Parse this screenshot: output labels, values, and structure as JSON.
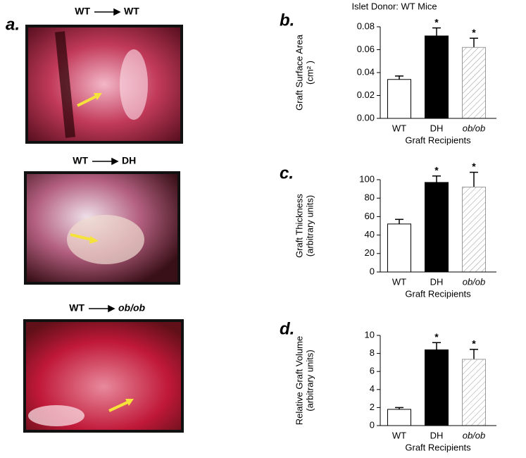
{
  "panel_a": {
    "label": "a.",
    "captions": [
      {
        "donor": "WT",
        "recipient": "WT"
      },
      {
        "donor": "WT",
        "recipient": "DH"
      },
      {
        "donor": "WT",
        "recipient": "ob/ob"
      }
    ]
  },
  "chart_data": [
    {
      "type": "bar",
      "panel_label": "b.",
      "title": "Islet Donor: WT Mice",
      "y_label": [
        "Graft Surface Area",
        "(cm² )"
      ],
      "x_label": "Graft Recipients",
      "categories": [
        "WT",
        "DH",
        "ob/ob"
      ],
      "values": [
        0.034,
        0.072,
        0.062
      ],
      "errors": [
        0.003,
        0.007,
        0.008
      ],
      "significance": [
        null,
        "*",
        "*"
      ],
      "colors": [
        "#ffffff",
        "#000000",
        "#ffffff"
      ],
      "hatch": [
        false,
        false,
        true
      ],
      "ylim": [
        0,
        0.08
      ],
      "yticks": [
        {
          "value": 0,
          "label": "0.00"
        },
        {
          "value": 0.02,
          "label": "0.02"
        },
        {
          "value": 0.04,
          "label": "0.04"
        },
        {
          "value": 0.06,
          "label": "0.06"
        },
        {
          "value": 0.08,
          "label": "0.08"
        }
      ]
    },
    {
      "type": "bar",
      "panel_label": "c.",
      "y_label": [
        "Graft Thickness",
        "(arbitrary units)"
      ],
      "x_label": "Graft Recipients",
      "categories": [
        "WT",
        "DH",
        "ob/ob"
      ],
      "values": [
        52,
        97,
        92
      ],
      "errors": [
        5,
        7,
        16
      ],
      "significance": [
        null,
        "*",
        "*"
      ],
      "colors": [
        "#ffffff",
        "#000000",
        "#ffffff"
      ],
      "hatch": [
        false,
        false,
        true
      ],
      "ylim": [
        0,
        100
      ],
      "yticks": [
        0,
        20,
        40,
        60,
        80,
        100
      ]
    },
    {
      "type": "bar",
      "panel_label": "d.",
      "y_label": [
        "Relative Graft Volume",
        "(arbitrary units)"
      ],
      "x_label": "Graft Recipients",
      "categories": [
        "WT",
        "DH",
        "ob/ob"
      ],
      "values": [
        1.8,
        8.4,
        7.35
      ],
      "errors": [
        0.2,
        0.8,
        1.1
      ],
      "significance": [
        null,
        "*",
        "*"
      ],
      "colors": [
        "#ffffff",
        "#000000",
        "#ffffff"
      ],
      "hatch": [
        false,
        false,
        true
      ],
      "ylim": [
        0,
        10
      ],
      "yticks": [
        0,
        2,
        4,
        6,
        8,
        10
      ]
    }
  ]
}
